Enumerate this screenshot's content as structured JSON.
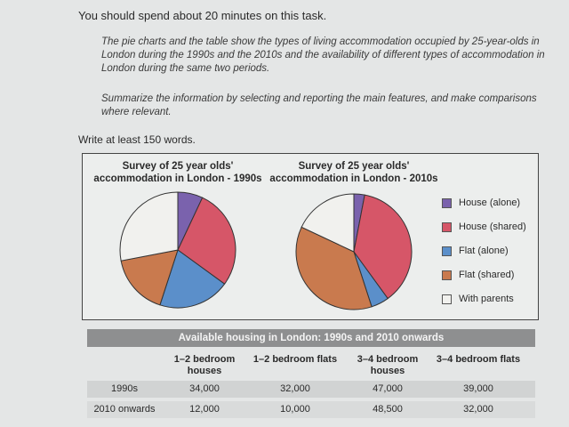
{
  "task_line": "You should spend about 20 minutes on this task.",
  "prompt": "The pie charts and the table show the types of living accommodation occupied by 25-year-olds in London during the 1990s and the 2010s and the availability of different types of accommodation in London during the same two periods.",
  "instruction": "Summarize the information by selecting and reporting the main features, and make comparisons where relevant.",
  "word_count": "Write at least 150 words.",
  "chart_data": [
    {
      "type": "pie",
      "title": "Survey of 25 year olds' accommodation in London - 1990s",
      "categories": [
        "House (alone)",
        "House (shared)",
        "Flat (alone)",
        "Flat (shared)",
        "With parents"
      ],
      "values": [
        7,
        28,
        20,
        17,
        28
      ],
      "colors": [
        "#7a62ad",
        "#d65668",
        "#5b8fca",
        "#c97a4e",
        "#f1f1ee"
      ]
    },
    {
      "type": "pie",
      "title": "Survey of 25 year olds' accommodation in London - 2010s",
      "categories": [
        "House (alone)",
        "House (shared)",
        "Flat (alone)",
        "Flat (shared)",
        "With parents"
      ],
      "values": [
        3,
        37,
        5,
        37,
        18
      ],
      "colors": [
        "#7a62ad",
        "#d65668",
        "#5b8fca",
        "#c97a4e",
        "#f1f1ee"
      ]
    }
  ],
  "table": {
    "title": "Available housing in London: 1990s and 2010 onwards",
    "columns": [
      "1–2 bedroom houses",
      "1–2 bedroom flats",
      "3–4 bedroom houses",
      "3–4 bedroom flats"
    ],
    "rows": [
      [
        "1990s",
        "34,000",
        "32,000",
        "47,000",
        "39,000"
      ],
      [
        "2010 onwards",
        "12,000",
        "10,000",
        "48,500",
        "32,000"
      ]
    ]
  }
}
